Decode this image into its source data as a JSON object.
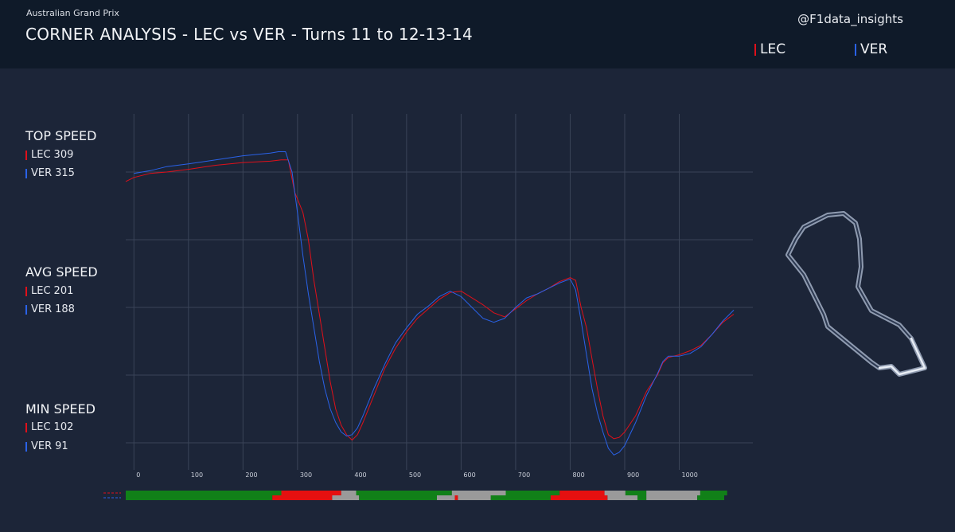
{
  "header": {
    "event": "Australian Grand Prix",
    "title": "CORNER ANALYSIS - LEC vs VER - Turns 11 to 12-13-14",
    "handle": "@F1data_insights"
  },
  "legend": [
    {
      "label": "LEC",
      "color": "#e0101a"
    },
    {
      "label": "VER",
      "color": "#2a62e8"
    }
  ],
  "stats": {
    "top_speed": {
      "title": "TOP SPEED",
      "lec_label": "LEC",
      "lec_value": "309",
      "ver_label": "VER",
      "ver_value": "315"
    },
    "avg_speed": {
      "title": "AVG SPEED",
      "lec_label": "LEC",
      "lec_value": "201",
      "ver_label": "VER",
      "ver_value": "188"
    },
    "min_speed": {
      "title": "MIN SPEED",
      "lec_label": "LEC",
      "lec_value": "102",
      "ver_label": "VER",
      "ver_value": "91"
    }
  },
  "chart_data": {
    "type": "line",
    "x_ticks": [
      0,
      100,
      200,
      300,
      400,
      500,
      600,
      700,
      800,
      900,
      1000
    ],
    "xlim": [
      -15,
      1135
    ],
    "ylim": [
      80,
      330
    ],
    "grid": true,
    "y_gridlines": [
      100,
      150,
      200,
      250,
      300
    ],
    "series": [
      {
        "name": "LEC",
        "color": "#e0101a",
        "points": [
          [
            -15,
            293
          ],
          [
            0,
            296
          ],
          [
            30,
            299
          ],
          [
            60,
            300
          ],
          [
            100,
            302
          ],
          [
            150,
            305
          ],
          [
            200,
            307
          ],
          [
            250,
            308
          ],
          [
            270,
            309
          ],
          [
            283,
            309
          ],
          [
            295,
            285
          ],
          [
            310,
            270
          ],
          [
            320,
            250
          ],
          [
            330,
            220
          ],
          [
            340,
            195
          ],
          [
            350,
            170
          ],
          [
            360,
            145
          ],
          [
            370,
            125
          ],
          [
            380,
            113
          ],
          [
            390,
            106
          ],
          [
            400,
            102
          ],
          [
            410,
            106
          ],
          [
            420,
            115
          ],
          [
            440,
            135
          ],
          [
            460,
            155
          ],
          [
            480,
            170
          ],
          [
            500,
            182
          ],
          [
            520,
            192
          ],
          [
            540,
            199
          ],
          [
            560,
            206
          ],
          [
            580,
            211
          ],
          [
            600,
            212
          ],
          [
            620,
            207
          ],
          [
            640,
            202
          ],
          [
            660,
            196
          ],
          [
            680,
            193
          ],
          [
            700,
            199
          ],
          [
            720,
            205
          ],
          [
            740,
            210
          ],
          [
            760,
            214
          ],
          [
            780,
            219
          ],
          [
            800,
            222
          ],
          [
            810,
            220
          ],
          [
            820,
            200
          ],
          [
            830,
            185
          ],
          [
            840,
            162
          ],
          [
            850,
            140
          ],
          [
            860,
            120
          ],
          [
            870,
            106
          ],
          [
            880,
            103
          ],
          [
            890,
            104
          ],
          [
            900,
            108
          ],
          [
            920,
            120
          ],
          [
            940,
            138
          ],
          [
            960,
            150
          ],
          [
            970,
            159
          ],
          [
            980,
            163
          ],
          [
            1000,
            165
          ],
          [
            1020,
            168
          ],
          [
            1040,
            172
          ],
          [
            1060,
            180
          ],
          [
            1080,
            189
          ],
          [
            1100,
            195
          ]
        ]
      },
      {
        "name": "VER",
        "color": "#2a62e8",
        "points": [
          [
            0,
            299
          ],
          [
            30,
            301
          ],
          [
            60,
            304
          ],
          [
            100,
            306
          ],
          [
            150,
            309
          ],
          [
            200,
            312
          ],
          [
            250,
            314
          ],
          [
            265,
            315
          ],
          [
            278,
            315
          ],
          [
            290,
            300
          ],
          [
            300,
            270
          ],
          [
            310,
            238
          ],
          [
            320,
            210
          ],
          [
            330,
            185
          ],
          [
            340,
            160
          ],
          [
            350,
            140
          ],
          [
            360,
            125
          ],
          [
            370,
            115
          ],
          [
            380,
            108
          ],
          [
            390,
            105
          ],
          [
            400,
            106
          ],
          [
            410,
            111
          ],
          [
            420,
            120
          ],
          [
            440,
            140
          ],
          [
            460,
            158
          ],
          [
            480,
            174
          ],
          [
            500,
            185
          ],
          [
            520,
            195
          ],
          [
            540,
            201
          ],
          [
            560,
            208
          ],
          [
            580,
            212
          ],
          [
            600,
            208
          ],
          [
            620,
            200
          ],
          [
            640,
            192
          ],
          [
            660,
            189
          ],
          [
            680,
            192
          ],
          [
            700,
            200
          ],
          [
            720,
            207
          ],
          [
            740,
            210
          ],
          [
            760,
            214
          ],
          [
            780,
            218
          ],
          [
            800,
            221
          ],
          [
            810,
            213
          ],
          [
            820,
            190
          ],
          [
            830,
            165
          ],
          [
            840,
            140
          ],
          [
            850,
            122
          ],
          [
            860,
            108
          ],
          [
            870,
            96
          ],
          [
            880,
            91
          ],
          [
            890,
            93
          ],
          [
            900,
            98
          ],
          [
            920,
            115
          ],
          [
            940,
            135
          ],
          [
            960,
            151
          ],
          [
            970,
            160
          ],
          [
            980,
            164
          ],
          [
            1000,
            164
          ],
          [
            1020,
            166
          ],
          [
            1040,
            171
          ],
          [
            1060,
            180
          ],
          [
            1080,
            190
          ],
          [
            1100,
            198
          ]
        ]
      }
    ]
  },
  "mini_sectors": {
    "rows": [
      {
        "name": "LEC",
        "color": "#e0101a",
        "segments": [
          [
            "#118018",
            0.26
          ],
          [
            "#e51010",
            0.1
          ],
          [
            "#9a9a9a",
            0.025
          ],
          [
            "#118018",
            0.16
          ],
          [
            "#9a9a9a",
            0.09
          ],
          [
            "#118018",
            0.09
          ],
          [
            "#e51010",
            0.075
          ],
          [
            "#9a9a9a",
            0.035
          ],
          [
            "#118018",
            0.035
          ],
          [
            "#9a9a9a",
            0.09
          ],
          [
            "#118018",
            0.045
          ]
        ]
      },
      {
        "name": "VER",
        "color": "#2a62e8",
        "segments": [
          [
            "#118018",
            0.245
          ],
          [
            "#e51010",
            0.1
          ],
          [
            "#9a9a9a",
            0.045
          ],
          [
            "#118018",
            0.13
          ],
          [
            "#9a9a9a",
            0.03
          ],
          [
            "#e51010",
            0.005
          ],
          [
            "#9a9a9a",
            0.055
          ],
          [
            "#118018",
            0.1
          ],
          [
            "#e51010",
            0.095
          ],
          [
            "#9a9a9a",
            0.05
          ],
          [
            "#118018",
            0.015
          ],
          [
            "#9a9a9a",
            0.085
          ],
          [
            "#118018",
            0.045
          ]
        ]
      }
    ]
  },
  "track_map": {
    "icon": "track-outline-icon",
    "color": "#cfd8e6"
  }
}
